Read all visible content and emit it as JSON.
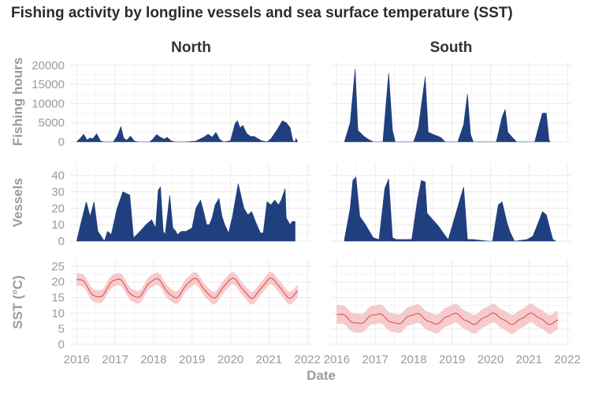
{
  "title": "Fishing activity by longline vessels and sea surface temperature (SST)",
  "chart_data": {
    "type": "area",
    "title": "Fishing activity by longline vessels and sea surface temperature (SST)",
    "xlabel": "Date",
    "facets": [
      "North",
      "South"
    ],
    "x_ticks": [
      "2016",
      "2017",
      "2018",
      "2019",
      "2020",
      "2021",
      "2022"
    ],
    "xlim": [
      2015.85,
      2022.1
    ],
    "grid": true,
    "colors": {
      "area": "#203f7e",
      "sst_line": "#e0453f",
      "sst_band": "#f4c2c4",
      "panel_bg": "#ebebeb"
    },
    "rows": [
      {
        "ylabel": "Fishing hours",
        "ylim": [
          0,
          21000
        ],
        "y_ticks": [
          0,
          5000,
          10000,
          15000,
          20000
        ],
        "series": {
          "North": [
            [
              2016.0,
              0
            ],
            [
              2016.12,
              1200
            ],
            [
              2016.18,
              2000
            ],
            [
              2016.27,
              500
            ],
            [
              2016.35,
              1000
            ],
            [
              2016.42,
              800
            ],
            [
              2016.52,
              2100
            ],
            [
              2016.62,
              200
            ],
            [
              2016.72,
              0
            ],
            [
              2016.95,
              0
            ],
            [
              2017.05,
              1500
            ],
            [
              2017.15,
              4000
            ],
            [
              2017.22,
              1000
            ],
            [
              2017.3,
              400
            ],
            [
              2017.4,
              1500
            ],
            [
              2017.5,
              200
            ],
            [
              2017.6,
              0
            ],
            [
              2017.9,
              0
            ],
            [
              2017.98,
              700
            ],
            [
              2018.08,
              1900
            ],
            [
              2018.18,
              1200
            ],
            [
              2018.28,
              700
            ],
            [
              2018.35,
              1200
            ],
            [
              2018.45,
              300
            ],
            [
              2018.55,
              0
            ],
            [
              2018.8,
              0
            ],
            [
              2019.1,
              200
            ],
            [
              2019.3,
              1200
            ],
            [
              2019.42,
              2000
            ],
            [
              2019.52,
              1200
            ],
            [
              2019.62,
              2500
            ],
            [
              2019.72,
              600
            ],
            [
              2019.82,
              0
            ],
            [
              2020.0,
              300
            ],
            [
              2020.12,
              4800
            ],
            [
              2020.18,
              5500
            ],
            [
              2020.25,
              3600
            ],
            [
              2020.32,
              4300
            ],
            [
              2020.42,
              2200
            ],
            [
              2020.52,
              1400
            ],
            [
              2020.62,
              1400
            ],
            [
              2020.72,
              800
            ],
            [
              2020.8,
              300
            ],
            [
              2020.95,
              0
            ],
            [
              2021.05,
              800
            ],
            [
              2021.2,
              3000
            ],
            [
              2021.35,
              5500
            ],
            [
              2021.45,
              5000
            ],
            [
              2021.55,
              3700
            ],
            [
              2021.62,
              300
            ],
            [
              2021.68,
              0
            ],
            [
              2021.7,
              900
            ],
            [
              2021.74,
              200
            ]
          ],
          "South": [
            [
              2016.2,
              0
            ],
            [
              2016.35,
              5000
            ],
            [
              2016.48,
              19000
            ],
            [
              2016.55,
              3000
            ],
            [
              2016.7,
              1500
            ],
            [
              2016.85,
              500
            ],
            [
              2016.95,
              0
            ],
            [
              2017.2,
              0
            ],
            [
              2017.35,
              18000
            ],
            [
              2017.45,
              3000
            ],
            [
              2017.52,
              0
            ],
            [
              2018.0,
              0
            ],
            [
              2018.12,
              3500
            ],
            [
              2018.3,
              17000
            ],
            [
              2018.38,
              2500
            ],
            [
              2018.5,
              2000
            ],
            [
              2018.7,
              1200
            ],
            [
              2018.82,
              0
            ],
            [
              2019.15,
              0
            ],
            [
              2019.3,
              4500
            ],
            [
              2019.4,
              12500
            ],
            [
              2019.48,
              2000
            ],
            [
              2019.55,
              0
            ],
            [
              2020.15,
              0
            ],
            [
              2020.3,
              6500
            ],
            [
              2020.38,
              8500
            ],
            [
              2020.45,
              2500
            ],
            [
              2020.58,
              1000
            ],
            [
              2020.68,
              0
            ],
            [
              2021.15,
              0
            ],
            [
              2021.28,
              5000
            ],
            [
              2021.35,
              7500
            ],
            [
              2021.45,
              7500
            ],
            [
              2021.52,
              500
            ],
            [
              2021.55,
              0
            ]
          ]
        }
      },
      {
        "ylabel": "Vessels",
        "ylim": [
          0,
          47
        ],
        "y_ticks": [
          0,
          10,
          20,
          30,
          40
        ],
        "series": {
          "North": [
            [
              2016.0,
              0
            ],
            [
              2016.1,
              10
            ],
            [
              2016.25,
              24
            ],
            [
              2016.35,
              15
            ],
            [
              2016.45,
              24
            ],
            [
              2016.55,
              6
            ],
            [
              2016.72,
              0
            ],
            [
              2016.8,
              6
            ],
            [
              2016.9,
              4
            ],
            [
              2017.05,
              20
            ],
            [
              2017.2,
              30
            ],
            [
              2017.38,
              28
            ],
            [
              2017.48,
              2
            ],
            [
              2017.65,
              6
            ],
            [
              2017.8,
              10
            ],
            [
              2017.95,
              13
            ],
            [
              2018.05,
              8
            ],
            [
              2018.12,
              31
            ],
            [
              2018.18,
              33
            ],
            [
              2018.25,
              6
            ],
            [
              2018.3,
              4
            ],
            [
              2018.42,
              28
            ],
            [
              2018.5,
              8
            ],
            [
              2018.58,
              6
            ],
            [
              2018.62,
              4
            ],
            [
              2018.72,
              6
            ],
            [
              2018.85,
              6
            ],
            [
              2019.0,
              8
            ],
            [
              2019.1,
              20
            ],
            [
              2019.22,
              25
            ],
            [
              2019.3,
              18
            ],
            [
              2019.38,
              10
            ],
            [
              2019.45,
              10
            ],
            [
              2019.52,
              14
            ],
            [
              2019.6,
              22
            ],
            [
              2019.7,
              26
            ],
            [
              2019.78,
              15
            ],
            [
              2019.85,
              10
            ],
            [
              2019.95,
              5
            ],
            [
              2020.05,
              15
            ],
            [
              2020.2,
              35
            ],
            [
              2020.25,
              30
            ],
            [
              2020.35,
              20
            ],
            [
              2020.45,
              16
            ],
            [
              2020.55,
              18
            ],
            [
              2020.65,
              12
            ],
            [
              2020.72,
              8
            ],
            [
              2020.78,
              5
            ],
            [
              2020.85,
              5
            ],
            [
              2020.95,
              24
            ],
            [
              2021.05,
              22
            ],
            [
              2021.15,
              25
            ],
            [
              2021.25,
              22
            ],
            [
              2021.32,
              25
            ],
            [
              2021.42,
              32
            ],
            [
              2021.45,
              14
            ],
            [
              2021.55,
              10
            ],
            [
              2021.6,
              12
            ],
            [
              2021.68,
              12
            ]
          ],
          "South": [
            [
              2016.2,
              1
            ],
            [
              2016.35,
              20
            ],
            [
              2016.42,
              37
            ],
            [
              2016.5,
              39
            ],
            [
              2016.6,
              15
            ],
            [
              2016.75,
              10
            ],
            [
              2016.85,
              6
            ],
            [
              2016.95,
              2
            ],
            [
              2017.1,
              1
            ],
            [
              2017.25,
              32
            ],
            [
              2017.35,
              38
            ],
            [
              2017.45,
              2
            ],
            [
              2017.55,
              1
            ],
            [
              2017.95,
              1
            ],
            [
              2018.1,
              25
            ],
            [
              2018.2,
              37
            ],
            [
              2018.3,
              36
            ],
            [
              2018.35,
              17
            ],
            [
              2018.5,
              13
            ],
            [
              2018.65,
              9
            ],
            [
              2018.8,
              4
            ],
            [
              2018.9,
              1
            ],
            [
              2019.3,
              33
            ],
            [
              2019.4,
              1
            ],
            [
              2019.55,
              1
            ],
            [
              2019.95,
              0
            ],
            [
              2020.05,
              0
            ],
            [
              2020.2,
              22
            ],
            [
              2020.3,
              24
            ],
            [
              2020.42,
              12
            ],
            [
              2020.5,
              6
            ],
            [
              2020.58,
              2
            ],
            [
              2020.62,
              0
            ],
            [
              2020.95,
              1
            ],
            [
              2021.1,
              3
            ],
            [
              2021.22,
              10
            ],
            [
              2021.35,
              18
            ],
            [
              2021.45,
              16
            ],
            [
              2021.55,
              7
            ],
            [
              2021.62,
              1
            ],
            [
              2021.7,
              0
            ]
          ]
        }
      },
      {
        "ylabel": "SST (°C)",
        "ylim": [
          0,
          27
        ],
        "y_ticks": [
          0,
          5,
          10,
          15,
          20,
          25
        ],
        "series": {
          "North": {
            "start": 2016.0,
            "end": 2021.75,
            "mean": 18,
            "amplitude": 3,
            "peak_offset": 0.05,
            "band": 2
          },
          "South": {
            "start": 2016.0,
            "end": 2021.75,
            "mean": 8.2,
            "amplitude": 1.6,
            "peak_offset": 0.05,
            "band": 3
          }
        }
      }
    ]
  }
}
